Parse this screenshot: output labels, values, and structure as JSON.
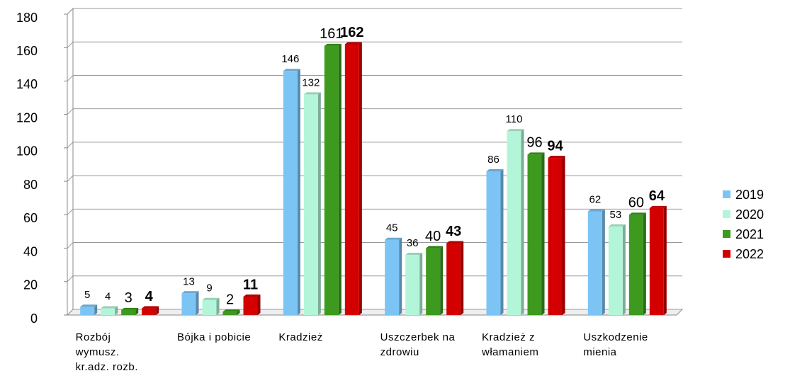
{
  "chart_data": {
    "type": "bar",
    "categories": [
      "Rozbój wymusz. kr.adz. rozb.",
      "Bójka i pobicie",
      "Kradzież",
      "Uszczerbek na zdrowiu",
      "Kradzież z włamaniem",
      "Uszkodzenie mienia"
    ],
    "series": [
      {
        "name": "2019",
        "color": "#7cc4f4",
        "values": [
          5,
          13,
          146,
          45,
          86,
          62
        ]
      },
      {
        "name": "2020",
        "color": "#b3f5d8",
        "values": [
          4,
          9,
          132,
          36,
          110,
          53
        ]
      },
      {
        "name": "2021",
        "color": "#3d9a1f",
        "values": [
          3,
          2,
          161,
          40,
          96,
          60
        ]
      },
      {
        "name": "2022",
        "color": "#d40000",
        "values": [
          4,
          11,
          162,
          43,
          94,
          64
        ]
      }
    ],
    "ylim": [
      0,
      180
    ],
    "yticks": [
      0,
      20,
      40,
      60,
      80,
      100,
      120,
      140,
      160,
      180
    ],
    "grid": true,
    "legend": "right"
  }
}
